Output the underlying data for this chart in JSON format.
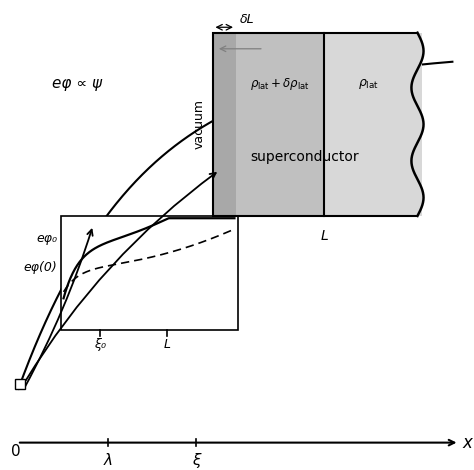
{
  "bg_color": "#ffffff",
  "main_label": "eφ ∝ ψ",
  "label_ephi0": "eφ₀",
  "label_ephi0_val": "eφ(0)",
  "label_xi0": "ξ₀",
  "label_L_inset": "L",
  "label_lambda": "λ",
  "label_xi": "ξ",
  "label_L_top": "L",
  "label_deltaL": "δL",
  "label_vacuum": "vacuum",
  "label_superconductor": "superconductor",
  "label_0": "0",
  "xlabel": "x",
  "inset_top_bg_left": "#c0c0c0",
  "inset_top_bg_right": "#d8d8d8",
  "inset_top_bg_strip": "#a8a8a8"
}
